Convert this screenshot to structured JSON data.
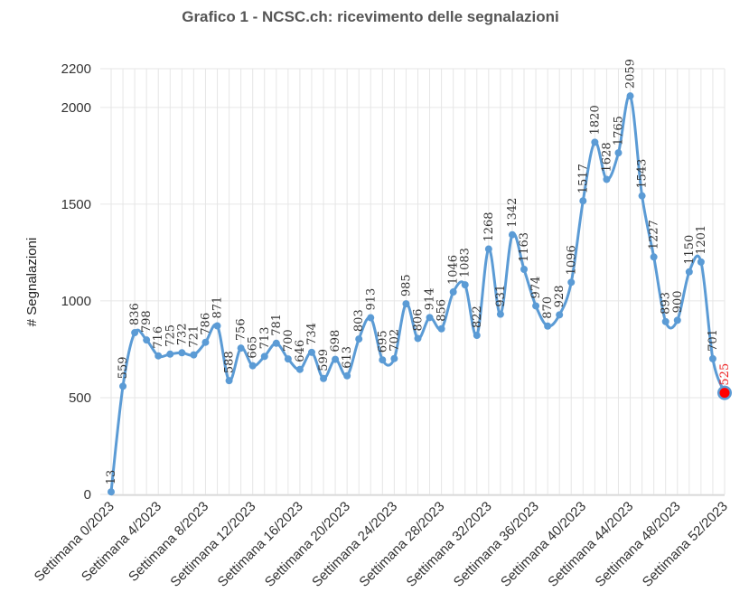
{
  "chart_data": {
    "type": "line",
    "title": "Grafico 1 - NCSC.ch: ricevimento delle segnalazioni",
    "ylabel": "# Segnalazioni",
    "xlabel": "",
    "ylim": [
      0,
      2200
    ],
    "yticks": [
      0,
      500,
      1000,
      1500,
      2000,
      2200
    ],
    "grid": true,
    "legend": "none",
    "x": [
      0,
      1,
      2,
      3,
      4,
      5,
      6,
      7,
      8,
      9,
      10,
      11,
      12,
      13,
      14,
      15,
      16,
      17,
      18,
      19,
      20,
      21,
      22,
      23,
      24,
      25,
      26,
      27,
      28,
      29,
      30,
      31,
      32,
      33,
      34,
      35,
      36,
      37,
      38,
      39,
      40,
      41,
      42,
      43,
      44,
      45,
      46,
      47,
      48,
      49,
      50,
      51,
      52
    ],
    "xtick_labels": [
      {
        "week": 0,
        "label": "Settimana 0/2023"
      },
      {
        "week": 4,
        "label": "Settimana 4/2023"
      },
      {
        "week": 8,
        "label": "Settimana 8/2023"
      },
      {
        "week": 12,
        "label": "Settimana 12/2023"
      },
      {
        "week": 16,
        "label": "Settimana 16/2023"
      },
      {
        "week": 20,
        "label": "Settimana 20/2023"
      },
      {
        "week": 24,
        "label": "Settimana 24/2023"
      },
      {
        "week": 28,
        "label": "Settimana 28/2023"
      },
      {
        "week": 32,
        "label": "Settimana 32/2023"
      },
      {
        "week": 36,
        "label": "Settimana 36/2023"
      },
      {
        "week": 40,
        "label": "Settimana 40/2023"
      },
      {
        "week": 44,
        "label": "Settimana 44/2023"
      },
      {
        "week": 48,
        "label": "Settimana 48/2023"
      },
      {
        "week": 52,
        "label": "Settimana 52/2023"
      }
    ],
    "series": [
      {
        "values": [
          13,
          559,
          836,
          798,
          716,
          725,
          732,
          721,
          786,
          871,
          588,
          756,
          665,
          713,
          781,
          700,
          646,
          734,
          599,
          698,
          613,
          803,
          913,
          695,
          702,
          985,
          806,
          914,
          856,
          1046,
          1083,
          822,
          1268,
          931,
          1342,
          1163,
          974,
          870,
          928,
          1096,
          1517,
          1820,
          1628,
          1765,
          2059,
          1543,
          1227,
          893,
          900,
          1150,
          1201,
          701,
          525
        ],
        "data_labels": [
          "13",
          "559",
          "836",
          "798",
          "716",
          "725",
          "732",
          "721",
          "786",
          "871",
          "588",
          "756",
          "665",
          "713",
          "781",
          "700",
          "646",
          "734",
          "599",
          "698",
          "613",
          "803",
          "913",
          "695",
          "702",
          "985",
          "806",
          "914",
          "856",
          "1046",
          "1083",
          "822",
          "1268",
          "931",
          "1342",
          "1163",
          "974",
          "870",
          "928",
          "1096",
          "1517",
          "1820",
          "1628",
          "1765",
          "2059",
          "1543",
          "1227",
          "893",
          "900",
          "1150",
          "1201",
          "701",
          "525"
        ]
      }
    ],
    "colors": {
      "line": "#5b9bd5",
      "highlight": "#ff0000",
      "highlight_label": "#ee2222"
    }
  }
}
